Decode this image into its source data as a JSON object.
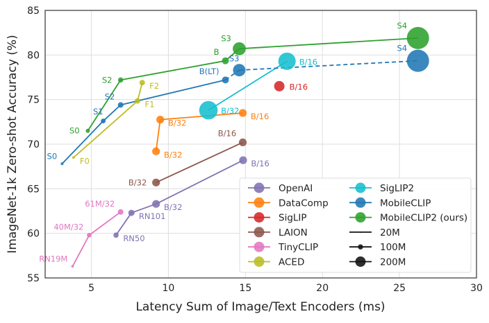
{
  "chart_data": {
    "type": "scatter",
    "title": "",
    "xlabel": "Latency Sum of Image/Text Encoders (ms)",
    "ylabel": "ImageNet-1k Zero-shot Accuracy (%)",
    "xlim": [
      2,
      30
    ],
    "ylim": [
      55,
      85
    ],
    "xticks": [
      5,
      10,
      15,
      20,
      25,
      30
    ],
    "yticks": [
      55,
      60,
      65,
      70,
      75,
      80,
      85
    ],
    "grid": true,
    "legend_placement": "lower-right",
    "marker_size_meaning": "model parameters (M)",
    "series": [
      {
        "name": "OpenAI",
        "color": "#8172b2",
        "points": [
          {
            "label": "RN50",
            "x": 6.6,
            "y": 59.8,
            "params": 102,
            "pos": "br"
          },
          {
            "label": "RN101",
            "x": 7.6,
            "y": 62.3,
            "params": 120,
            "pos": "br"
          },
          {
            "label": "B/32",
            "x": 9.2,
            "y": 63.3,
            "params": 150,
            "pos": "br"
          },
          {
            "label": "B/16",
            "x": 14.85,
            "y": 68.2,
            "params": 150,
            "pos": "br"
          }
        ]
      },
      {
        "name": "DataComp",
        "color": "#ff7f0e",
        "points": [
          {
            "label": "B/32",
            "x": 9.2,
            "y": 69.2,
            "params": 150,
            "pos": "br"
          },
          {
            "label": "B/32",
            "x": 9.47,
            "y": 72.75,
            "params": 150,
            "pos": "br"
          },
          {
            "label": "B/16",
            "x": 14.83,
            "y": 73.5,
            "params": 150,
            "pos": "br"
          }
        ]
      },
      {
        "name": "SigLIP",
        "color": "#d62728",
        "points": [
          {
            "label": "B/16",
            "x": 17.2,
            "y": 76.5,
            "params": 200,
            "pos": "r"
          }
        ]
      },
      {
        "name": "LAION",
        "color": "#8c564b",
        "points": [
          {
            "label": "B/32",
            "x": 9.2,
            "y": 65.7,
            "params": 150,
            "pos": "l"
          },
          {
            "label": "B/16",
            "x": 14.83,
            "y": 70.2,
            "params": 150,
            "pos": "tl"
          }
        ]
      },
      {
        "name": "TinyCLIP",
        "color": "#e377c2",
        "points": [
          {
            "label": "RN19M",
            "x": 3.78,
            "y": 56.3,
            "params": 50,
            "pos": "tl"
          },
          {
            "label": "40M/32",
            "x": 4.86,
            "y": 59.8,
            "params": 90,
            "pos": "tl"
          },
          {
            "label": "61M/32",
            "x": 6.9,
            "y": 62.4,
            "params": 107,
            "pos": "tl"
          }
        ]
      },
      {
        "name": "ACED",
        "color": "#bcbd22",
        "points": [
          {
            "label": "F0",
            "x": 3.84,
            "y": 68.5,
            "params": 50,
            "pos": "br"
          },
          {
            "label": "F1",
            "x": 8.0,
            "y": 74.85,
            "params": 107,
            "pos": "br"
          },
          {
            "label": "F2",
            "x": 8.3,
            "y": 76.9,
            "params": 107,
            "pos": "br"
          }
        ]
      },
      {
        "name": "SigLIP2",
        "color": "#17becf",
        "points": [
          {
            "label": "B/32",
            "x": 12.6,
            "y": 73.8,
            "params": 355,
            "pos": "r"
          },
          {
            "label": "B/16",
            "x": 17.7,
            "y": 79.3,
            "params": 333,
            "pos": "r"
          }
        ]
      },
      {
        "name": "MobileCLIP",
        "color": "#1f77b4",
        "dashed_from_index": 3,
        "points": [
          {
            "label": "S0",
            "x": 3.1,
            "y": 67.8,
            "params": 54,
            "pos": "tl"
          },
          {
            "label": "S1",
            "x": 5.77,
            "y": 72.6,
            "params": 93,
            "pos": "t"
          },
          {
            "label": "S2",
            "x": 6.9,
            "y": 74.4,
            "params": 107,
            "pos": "tl"
          },
          {
            "label": "B(LT)",
            "x": 13.7,
            "y": 77.2,
            "params": 133,
            "pos": "tl"
          },
          {
            "label": "S3",
            "x": 14.6,
            "y": 78.3,
            "params": 240,
            "pos": "t"
          },
          {
            "label": "S4",
            "x": 26.2,
            "y": 79.35,
            "params": 427,
            "pos": "tl"
          }
        ]
      },
      {
        "name": "MobileCLIP2 (ours)",
        "color": "#2ca02c",
        "points": [
          {
            "label": "S0",
            "x": 4.77,
            "y": 71.5,
            "params": 80,
            "pos": "l"
          },
          {
            "label": "S2",
            "x": 6.9,
            "y": 77.2,
            "params": 99,
            "pos": "l"
          },
          {
            "label": "B",
            "x": 13.7,
            "y": 79.35,
            "params": 133,
            "pos": "tl"
          },
          {
            "label": "S3",
            "x": 14.6,
            "y": 80.7,
            "params": 250,
            "pos": "tl"
          },
          {
            "label": "S4",
            "x": 26.2,
            "y": 81.9,
            "params": 427,
            "pos": "tl"
          }
        ]
      }
    ],
    "size_legend": [
      {
        "label": "20M",
        "params": 20
      },
      {
        "label": "100M",
        "params": 100
      },
      {
        "label": "200M",
        "params": 200
      }
    ]
  }
}
